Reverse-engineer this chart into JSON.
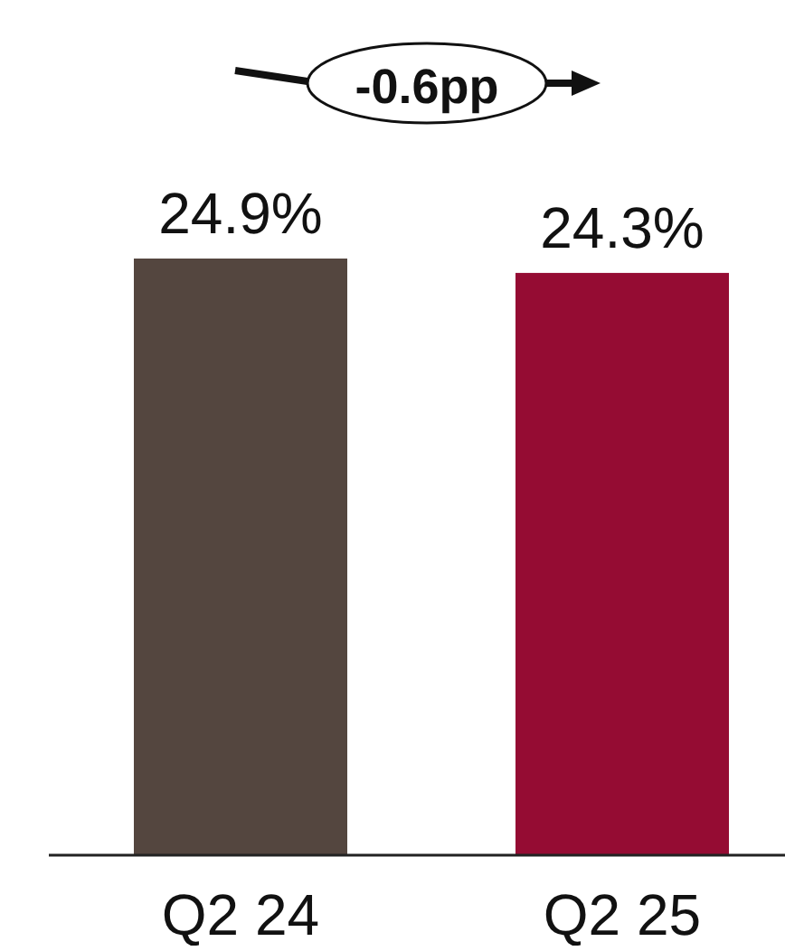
{
  "chart_data": {
    "type": "bar",
    "categories": [
      "Q2 24",
      "Q2 25"
    ],
    "values": [
      24.9,
      24.3
    ],
    "colors": [
      "#54463f",
      "#950c33"
    ],
    "data_labels": true,
    "value_labels": [
      "24.9%",
      "24.3%"
    ],
    "annotations": [
      "-0.6pp"
    ]
  }
}
